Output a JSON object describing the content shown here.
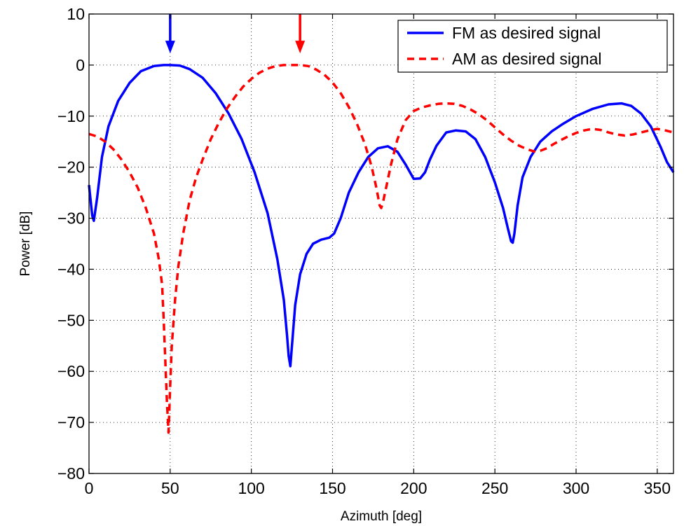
{
  "chart_data": {
    "type": "line",
    "title": "",
    "xlabel": "Azimuth [deg]",
    "ylabel": "Power [dB]",
    "xlim": [
      0,
      360
    ],
    "ylim": [
      -80,
      10
    ],
    "xticks": [
      0,
      50,
      100,
      150,
      200,
      250,
      300,
      350
    ],
    "yticks": [
      10,
      0,
      -10,
      -20,
      -30,
      -40,
      -50,
      -60,
      -70,
      -80
    ],
    "grid": true,
    "legend_position": "top-right",
    "series": [
      {
        "name": "FM as desired signal",
        "color": "#0000ff",
        "style": "solid",
        "x": [
          0,
          2,
          3,
          5,
          8,
          12,
          18,
          25,
          32,
          40,
          46,
          50,
          56,
          62,
          70,
          78,
          86,
          94,
          102,
          110,
          116,
          120,
          122,
          123,
          124,
          125,
          127,
          130,
          134,
          138,
          143,
          148,
          151,
          155,
          160,
          166,
          172,
          178,
          184,
          190,
          195,
          200,
          204,
          207,
          210,
          214,
          220,
          226,
          232,
          238,
          244,
          250,
          255,
          258,
          260,
          261,
          262,
          264,
          267,
          272,
          278,
          285,
          292,
          300,
          310,
          320,
          328,
          334,
          340,
          346,
          352,
          356,
          360
        ],
        "y": [
          -23.5,
          -29.5,
          -30.5,
          -26,
          -18,
          -12,
          -7,
          -3.5,
          -1.2,
          -0.2,
          0,
          0,
          -0.1,
          -0.8,
          -2.5,
          -5.5,
          -9.5,
          -14.5,
          -21,
          -29,
          -38,
          -46,
          -53,
          -57,
          -59,
          -55,
          -47,
          -41,
          -37,
          -35,
          -34.2,
          -33.8,
          -33,
          -30,
          -25,
          -21,
          -18,
          -16.3,
          -15.9,
          -17,
          -19.5,
          -22.3,
          -22.2,
          -21,
          -18.5,
          -15.8,
          -13.2,
          -12.8,
          -13,
          -14.5,
          -18,
          -23,
          -28,
          -32,
          -34.5,
          -34.8,
          -33,
          -27.5,
          -22,
          -18,
          -15,
          -13,
          -11.5,
          -10,
          -8.6,
          -7.7,
          -7.5,
          -8,
          -9.5,
          -12,
          -16,
          -19,
          -21
        ]
      },
      {
        "name": "AM as desired signal",
        "color": "#ff0000",
        "style": "dashed",
        "x": [
          0,
          5,
          10,
          15,
          20,
          25,
          30,
          35,
          40,
          43,
          45,
          46,
          47,
          48,
          49,
          50,
          51,
          53,
          55,
          58,
          62,
          66,
          70,
          75,
          80,
          85,
          90,
          95,
          100,
          105,
          110,
          115,
          120,
          125,
          130,
          135,
          140,
          145,
          150,
          155,
          160,
          165,
          170,
          174,
          177,
          179,
          180,
          181,
          183,
          186,
          190,
          195,
          200,
          205,
          210,
          215,
          220,
          225,
          230,
          235,
          240,
          245,
          250,
          255,
          260,
          265,
          270,
          275,
          278,
          282,
          286,
          290,
          295,
          300,
          305,
          310,
          315,
          320,
          325,
          330,
          335,
          340,
          345,
          350,
          355,
          360
        ],
        "y": [
          -13.5,
          -14,
          -15,
          -16.5,
          -18.5,
          -21,
          -24,
          -28,
          -33,
          -38,
          -43,
          -50,
          -58,
          -66,
          -72,
          -63,
          -55,
          -46,
          -39.5,
          -33,
          -26.5,
          -22,
          -18.5,
          -14.5,
          -11.3,
          -8.5,
          -6.2,
          -4.2,
          -2.7,
          -1.5,
          -0.7,
          -0.2,
          0,
          0,
          0,
          -0.2,
          -0.9,
          -1.9,
          -3.4,
          -5.5,
          -8.2,
          -11.5,
          -15.5,
          -19.8,
          -24,
          -27.5,
          -28,
          -27,
          -24,
          -19.5,
          -14.5,
          -10.8,
          -9,
          -8.3,
          -7.9,
          -7.6,
          -7.5,
          -7.6,
          -8,
          -8.7,
          -9.6,
          -10.8,
          -12.2,
          -13.6,
          -14.8,
          -15.8,
          -16.5,
          -17,
          -16.8,
          -16.3,
          -15.5,
          -14.8,
          -14,
          -13.3,
          -12.8,
          -12.5,
          -12.7,
          -13.2,
          -13.6,
          -13.8,
          -13.6,
          -13.2,
          -12.8,
          -12.5,
          -12.8,
          -13.2
        ]
      }
    ],
    "annotations": [
      {
        "type": "arrow",
        "x": 50,
        "y_from": 10,
        "y_to": 2.3,
        "color": "#0000ff"
      },
      {
        "type": "arrow",
        "x": 130,
        "y_from": 10,
        "y_to": 2.3,
        "color": "#ff0000"
      }
    ]
  }
}
